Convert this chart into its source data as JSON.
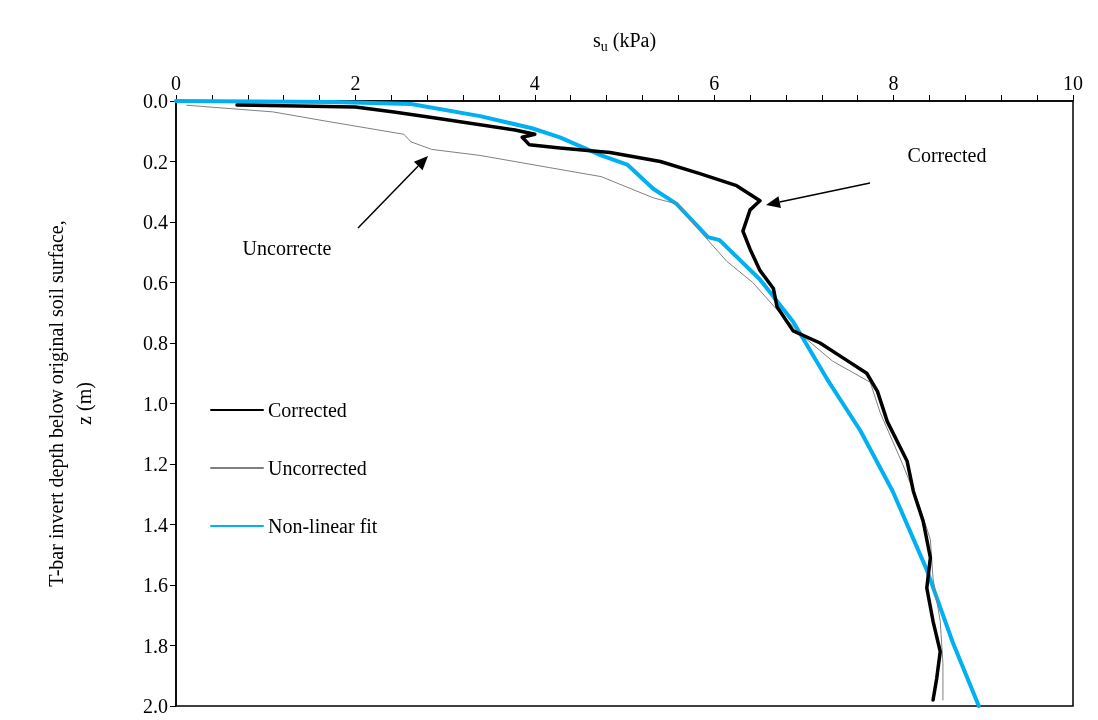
{
  "chart_data": {
    "type": "line",
    "xlabel": "s$_{u}$ (kPa)",
    "ylabel": "T-bar invert depth below original soil surface, z (m)",
    "xlim": [
      0,
      10
    ],
    "xticks": [
      0,
      {
        "value": 0.4,
        "label": null
      },
      {
        "value": 0.8,
        "label": null
      },
      {
        "value": 1.2,
        "label": null
      },
      {
        "value": 1.6,
        "label": null
      },
      2,
      {
        "value": 2.4,
        "label": null
      },
      {
        "value": 2.8,
        "label": null
      },
      {
        "value": 3.2,
        "label": null
      },
      {
        "value": 3.6,
        "label": null
      },
      4,
      {
        "value": 4.4,
        "label": null
      },
      {
        "value": 4.8,
        "label": null
      },
      {
        "value": 5.2,
        "label": null
      },
      {
        "value": 5.6,
        "label": null
      },
      6,
      {
        "value": 6.4,
        "label": null
      },
      {
        "value": 6.8,
        "label": null
      },
      {
        "value": 7.2,
        "label": null
      },
      {
        "value": 7.6,
        "label": null
      },
      8,
      {
        "value": 8.4,
        "label": null
      },
      {
        "value": 8.8,
        "label": null
      },
      {
        "value": 9.2,
        "label": null
      },
      {
        "value": 9.6,
        "label": null
      },
      10
    ],
    "ylim": [
      2,
      0
    ],
    "yticks": [
      {
        "value": 0,
        "label": "0.0"
      },
      0.2,
      0.4,
      0.6,
      0.8,
      {
        "value": 1,
        "label": "1.0"
      },
      1.2,
      1.4,
      1.6,
      1.8,
      {
        "value": 2,
        "label": "2.0"
      }
    ],
    "grid": false,
    "legend": "left",
    "marker": "none",
    "line_style": "solid",
    "series": [
      {
        "name": "Corrected",
        "color": "#000000",
        "x": [
          0.68,
          2.0,
          2.43,
          2.89,
          3.78,
          4.0,
          3.86,
          3.94,
          4.28,
          4.84,
          5.4,
          5.84,
          6.25,
          6.51,
          6.4,
          6.32,
          6.4,
          6.51,
          6.66,
          6.7,
          6.88,
          7.18,
          7.44,
          7.7,
          7.82,
          7.93,
          8.15,
          8.22,
          8.33,
          8.41,
          8.37,
          8.44,
          8.52,
          8.48,
          8.44
        ],
        "values": [
          0.013,
          0.02,
          0.036,
          0.056,
          0.096,
          0.11,
          0.12,
          0.145,
          0.155,
          0.17,
          0.2,
          0.24,
          0.28,
          0.33,
          0.36,
          0.43,
          0.49,
          0.56,
          0.62,
          0.68,
          0.76,
          0.8,
          0.85,
          0.9,
          0.96,
          1.06,
          1.19,
          1.29,
          1.39,
          1.51,
          1.61,
          1.72,
          1.82,
          1.91,
          1.98
        ]
      },
      {
        "name": "Uncorrected",
        "color": "#808080",
        "x": [
          0.12,
          1.08,
          1.66,
          2.54,
          2.62,
          2.85,
          3.39,
          4.16,
          4.74,
          5.32,
          5.58,
          5.84,
          6.14,
          6.43,
          6.7,
          6.96,
          7.32,
          7.74,
          7.85,
          8.1,
          8.29,
          8.41,
          8.44,
          8.52,
          8.55,
          8.55
        ],
        "values": [
          0.014,
          0.036,
          0.066,
          0.11,
          0.135,
          0.16,
          0.18,
          0.22,
          0.25,
          0.32,
          0.34,
          0.43,
          0.53,
          0.6,
          0.69,
          0.77,
          0.86,
          0.93,
          1.03,
          1.2,
          1.34,
          1.45,
          1.58,
          1.72,
          1.86,
          1.98
        ]
      },
      {
        "name": "Non-linear fit",
        "color": "#00b0f0",
        "x": [
          0.0,
          1.75,
          2.62,
          3.39,
          3.97,
          4.28,
          4.74,
          5.03,
          5.32,
          5.58,
          5.93,
          6.06,
          6.51,
          6.88,
          7.26,
          7.63,
          7.99,
          8.37,
          8.66,
          8.95
        ],
        "values": [
          0.0,
          0.003,
          0.01,
          0.05,
          0.09,
          0.12,
          0.18,
          0.21,
          0.29,
          0.34,
          0.45,
          0.46,
          0.59,
          0.73,
          0.92,
          1.09,
          1.29,
          1.55,
          1.79,
          2.0
        ]
      }
    ],
    "annotations": [
      "Corrected",
      "Uncorrecte"
    ]
  }
}
